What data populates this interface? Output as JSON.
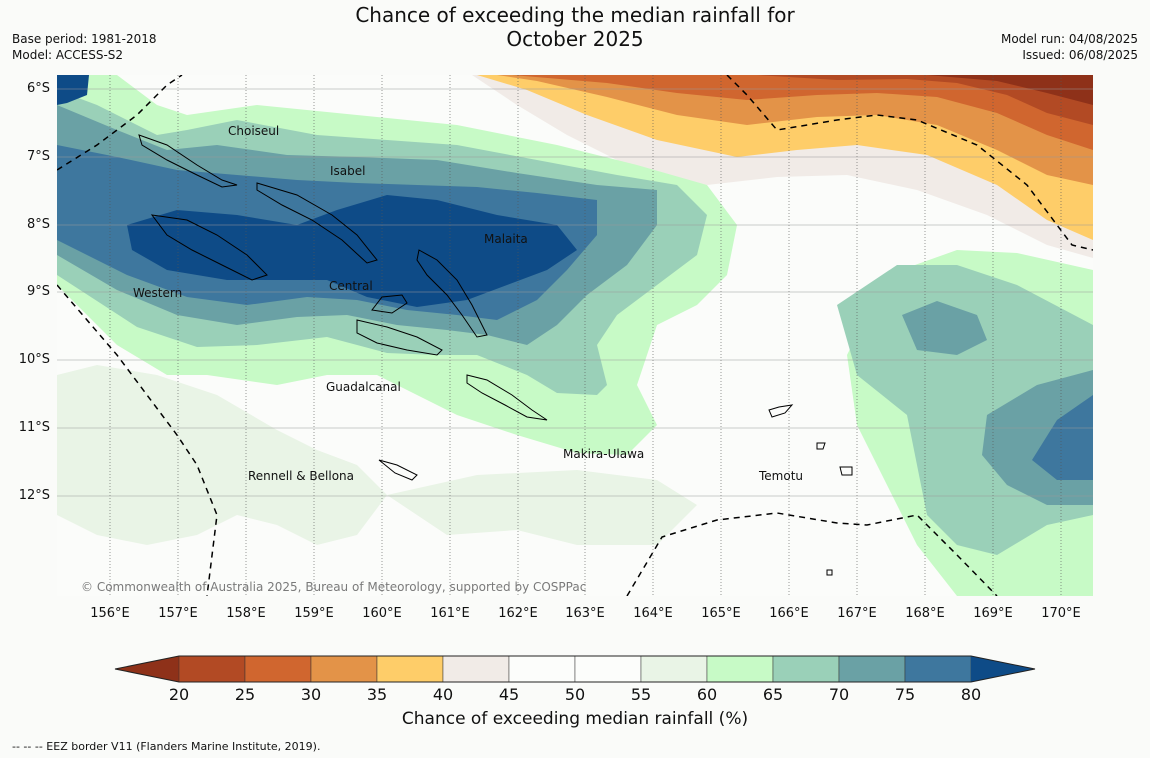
{
  "title": {
    "line1": "Chance of exceeding the median rainfall for",
    "line2": "October 2025"
  },
  "meta": {
    "base_period": "Base period: 1981-2018",
    "model": "Model: ACCESS-S2",
    "model_run": "Model run: 04/08/2025",
    "issued": "Issued: 06/08/2025"
  },
  "lat_labels": [
    "6°S",
    "7°S",
    "8°S",
    "9°S",
    "10°S",
    "11°S",
    "12°S"
  ],
  "lon_labels": [
    "156°E",
    "157°E",
    "158°E",
    "159°E",
    "160°E",
    "161°E",
    "162°E",
    "163°E",
    "164°E",
    "165°E",
    "166°E",
    "167°E",
    "168°E",
    "169°E",
    "170°E"
  ],
  "regions": {
    "choiseul": "Choiseul",
    "isabel": "Isabel",
    "malaita": "Malaita",
    "western": "Western",
    "central": "Central",
    "guadalcanal": "Guadalcanal",
    "makira": "Makira-Ulawa",
    "temotu": "Temotu",
    "rennell": "Rennell & Bellona"
  },
  "copyright": "© Commonwealth of Australia 2025, Bureau of Meteorology, supported by COSPPac",
  "colorbar": {
    "ticks": [
      "20",
      "25",
      "30",
      "35",
      "40",
      "45",
      "50",
      "55",
      "60",
      "65",
      "70",
      "75",
      "80"
    ],
    "colors": [
      "#8e3119",
      "#b24a24",
      "#d0662f",
      "#e39348",
      "#fecd69",
      "#f1ebe7",
      "#fcfdfb",
      "#fcfdfb",
      "#e9f4e6",
      "#c7fac6",
      "#9ad0b8",
      "#6aa1a5",
      "#3e779e",
      "#0e4b87"
    ],
    "label": "Chance of exceeding median rainfall (%)"
  },
  "eez_note": "-- -- -- EEZ border V11 (Flanders Marine Institute, 2019)."
}
